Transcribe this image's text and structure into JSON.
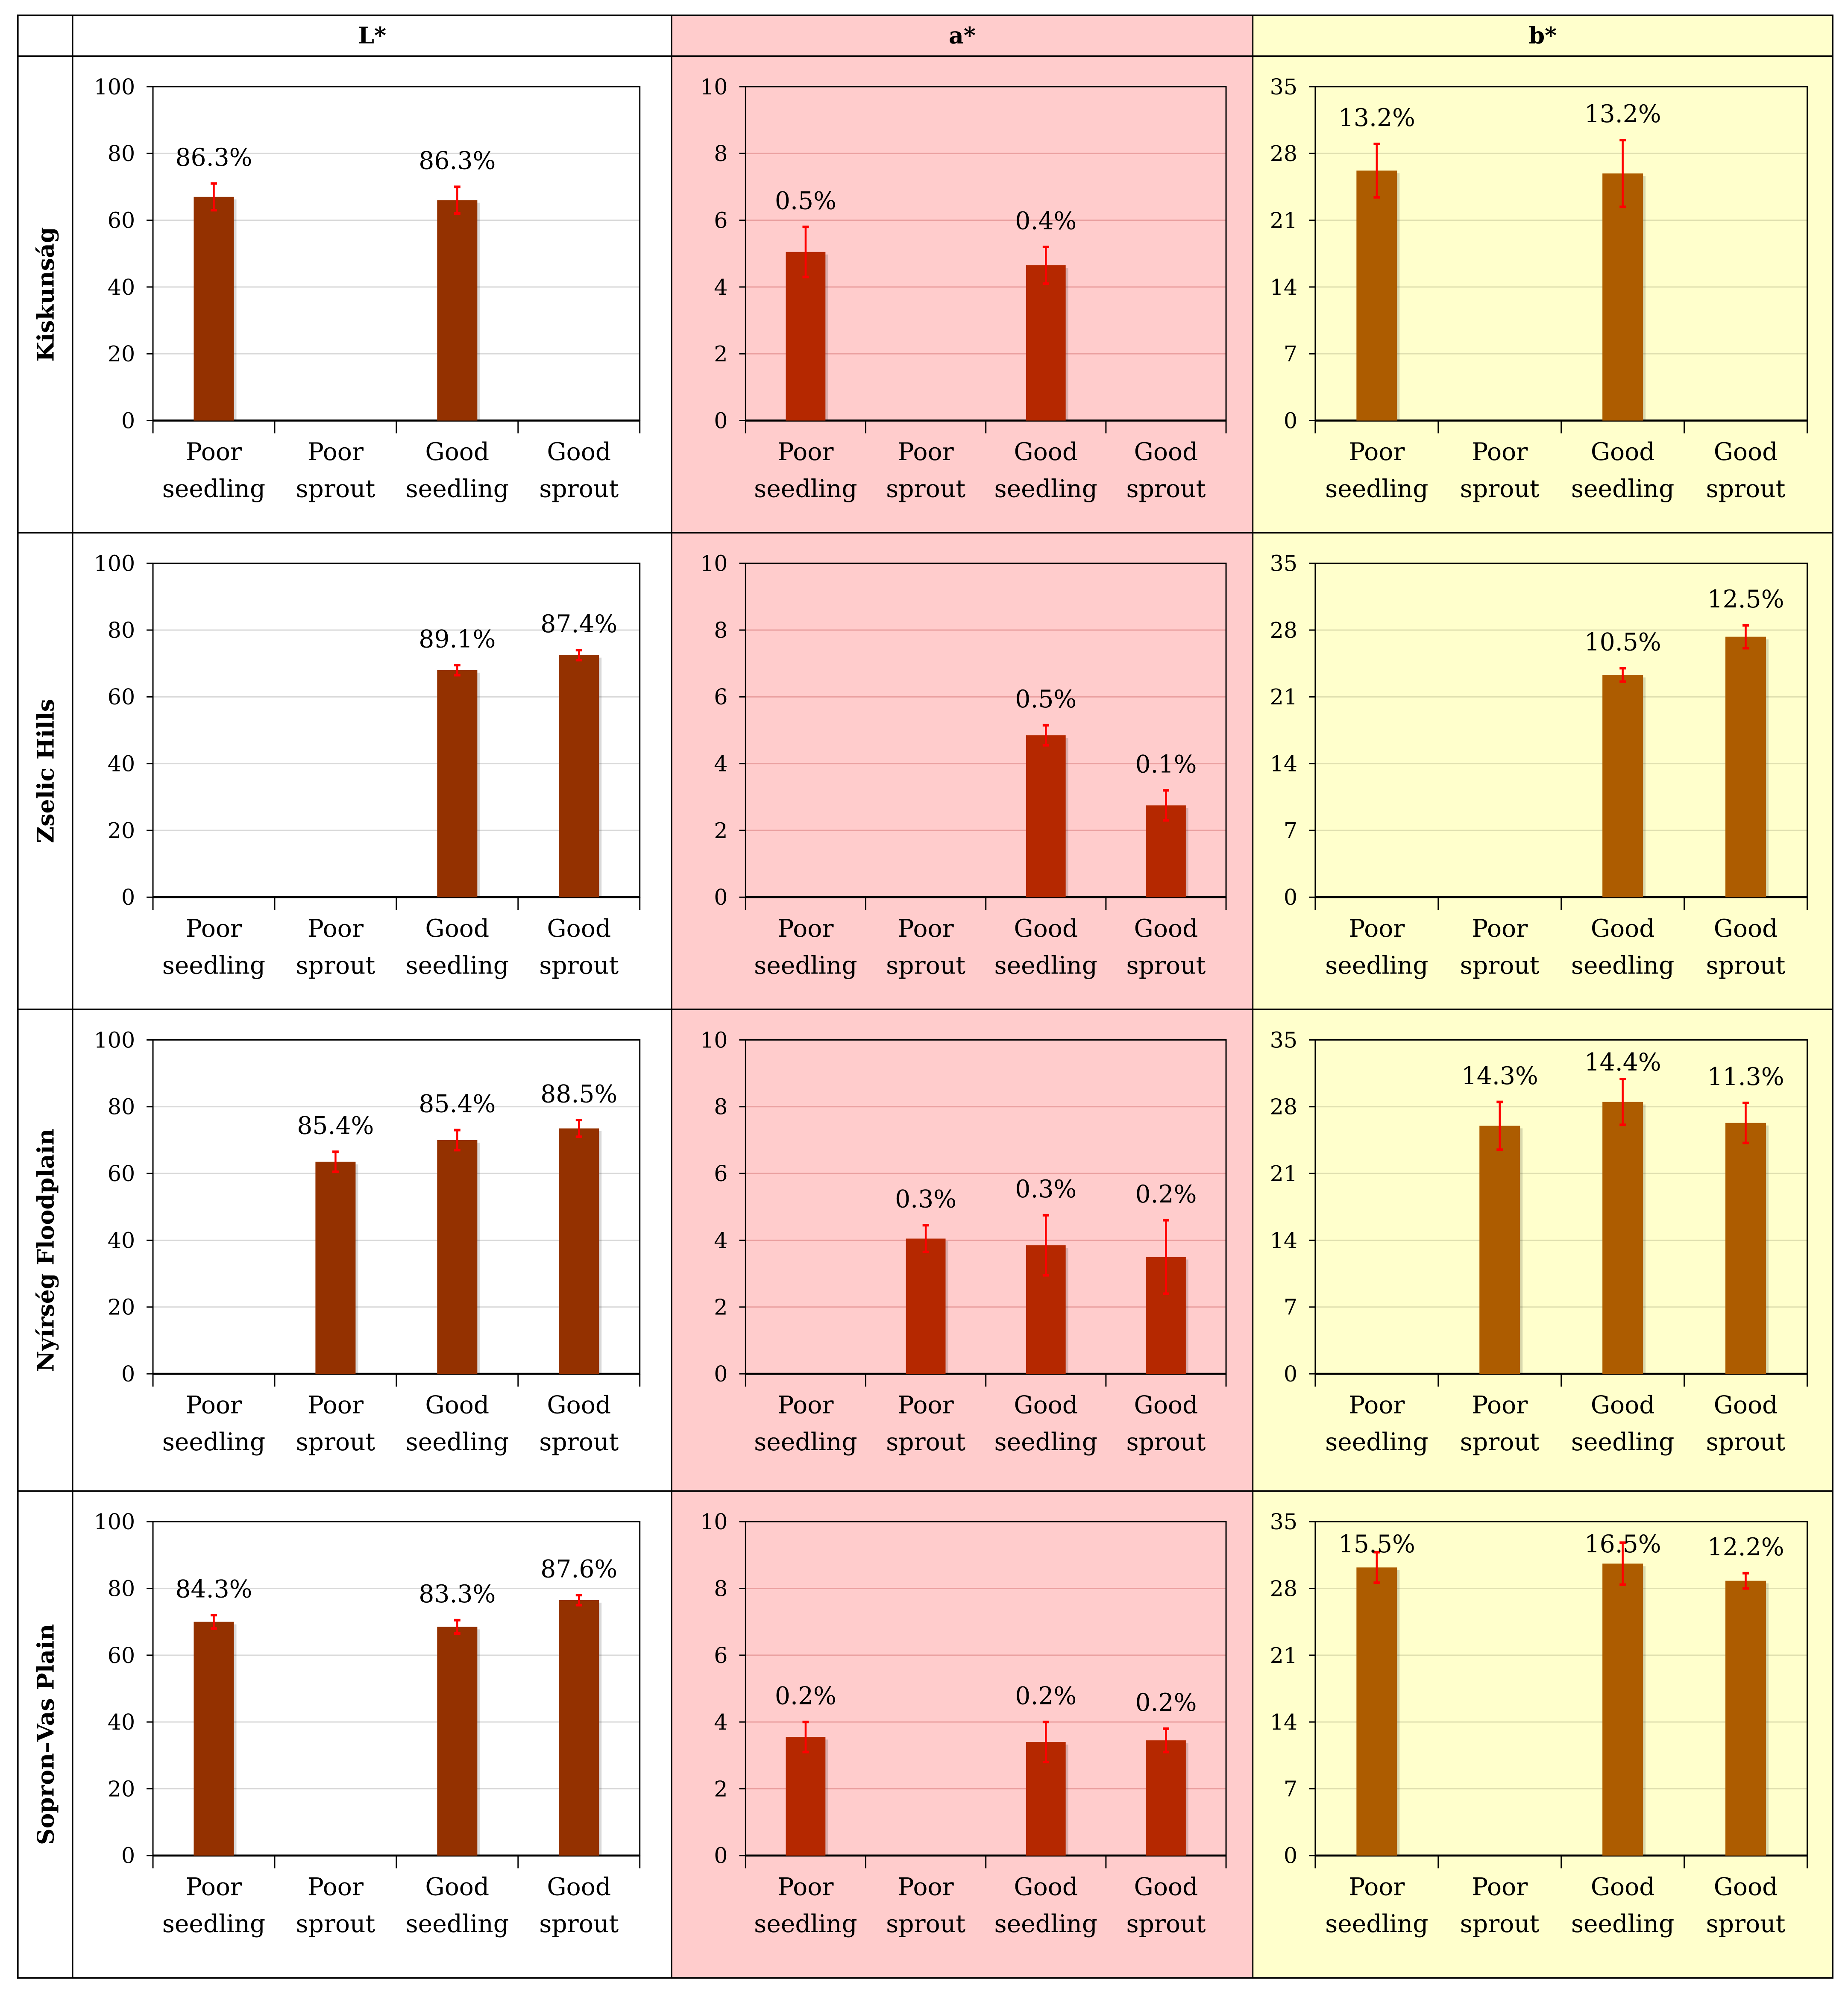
{
  "chart_data": {
    "type": "bar",
    "columns": [
      {
        "key": "L",
        "title": "L*",
        "ylim": [
          0,
          100
        ],
        "ticks": [
          0,
          20,
          40,
          60,
          80,
          100
        ],
        "bar_color": "#943100",
        "bg": "#FFFFFF"
      },
      {
        "key": "a",
        "title": "a*",
        "ylim": [
          0,
          10
        ],
        "ticks": [
          0,
          2,
          4,
          6,
          8,
          10
        ],
        "bar_color": "#B52800",
        "bg": "#FFCCCC"
      },
      {
        "key": "b",
        "title": "b*",
        "ylim": [
          0,
          35
        ],
        "ticks": [
          0,
          7,
          14,
          21,
          28,
          35
        ],
        "bar_color": "#AD5C00",
        "bg": "#FFFFCC"
      }
    ],
    "categories": [
      [
        "Poor",
        "seedling"
      ],
      [
        "Poor",
        "sprout"
      ],
      [
        "Good",
        "seedling"
      ],
      [
        "Good",
        "sprout"
      ]
    ],
    "error_color": "#FF0000",
    "rows": [
      {
        "label": "Kiskunság",
        "L": {
          "values": [
            67,
            null,
            66,
            null
          ],
          "errors": [
            4,
            null,
            4,
            null
          ],
          "labels": [
            "86.3%",
            null,
            "86.3%",
            null
          ]
        },
        "a": {
          "values": [
            5.05,
            null,
            4.65,
            null
          ],
          "errors": [
            0.75,
            null,
            0.55,
            null
          ],
          "labels": [
            "0.5%",
            null,
            "0.4%",
            null
          ]
        },
        "b": {
          "values": [
            26.2,
            null,
            25.9,
            null
          ],
          "errors": [
            2.8,
            null,
            3.5,
            null
          ],
          "labels": [
            "13.2%",
            null,
            "13.2%",
            null
          ]
        }
      },
      {
        "label": "Zselic Hills",
        "L": {
          "values": [
            null,
            null,
            68,
            72.5
          ],
          "errors": [
            null,
            null,
            1.5,
            1.5
          ],
          "labels": [
            null,
            null,
            "89.1%",
            "87.4%"
          ]
        },
        "a": {
          "values": [
            null,
            null,
            4.85,
            2.75
          ],
          "errors": [
            null,
            null,
            0.3,
            0.45
          ],
          "labels": [
            null,
            null,
            "0.5%",
            "0.1%"
          ]
        },
        "b": {
          "values": [
            null,
            null,
            23.3,
            27.3
          ],
          "errors": [
            null,
            null,
            0.7,
            1.2
          ],
          "labels": [
            null,
            null,
            "10.5%",
            "12.5%"
          ]
        }
      },
      {
        "label": "Nyírség Floodplain",
        "L": {
          "values": [
            null,
            63.5,
            70,
            73.5
          ],
          "errors": [
            null,
            3,
            3,
            2.5
          ],
          "labels": [
            null,
            "85.4%",
            "85.4%",
            "88.5%"
          ]
        },
        "a": {
          "values": [
            null,
            4.05,
            3.85,
            3.5
          ],
          "errors": [
            null,
            0.4,
            0.9,
            1.1
          ],
          "labels": [
            null,
            "0.3%",
            "0.3%",
            "0.2%"
          ]
        },
        "b": {
          "values": [
            null,
            26,
            28.5,
            26.3
          ],
          "errors": [
            null,
            2.5,
            2.4,
            2.1
          ],
          "labels": [
            null,
            "14.3%",
            "14.4%",
            "11.3%"
          ]
        }
      },
      {
        "label": "Sopron–Vas Plain",
        "L": {
          "values": [
            70,
            null,
            68.5,
            76.5
          ],
          "errors": [
            2,
            null,
            2,
            1.5
          ],
          "labels": [
            "84.3%",
            null,
            "83.3%",
            "87.6%"
          ]
        },
        "a": {
          "values": [
            3.55,
            null,
            3.4,
            3.45
          ],
          "errors": [
            0.45,
            null,
            0.6,
            0.35
          ],
          "labels": [
            "0.2%",
            null,
            "0.2%",
            "0.2%"
          ]
        },
        "b": {
          "values": [
            30.2,
            null,
            30.6,
            28.8
          ],
          "errors": [
            1.6,
            null,
            2.2,
            0.8
          ],
          "labels": [
            "15.5%",
            null,
            "16.5%",
            "12.2%"
          ]
        }
      }
    ]
  }
}
